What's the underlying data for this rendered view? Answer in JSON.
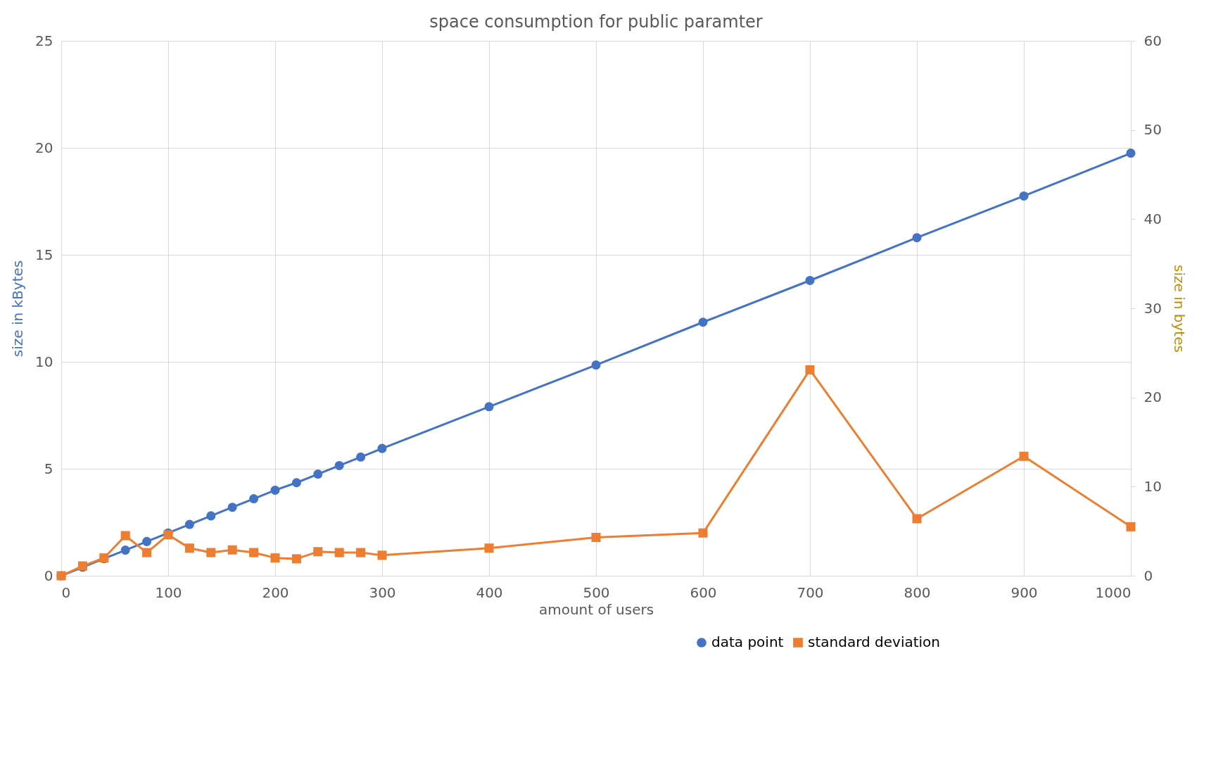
{
  "chart_data": {
    "type": "line",
    "title": "space consumption for public paramter",
    "xlabel": "amount of users",
    "ylabel": "size in kBytes",
    "y2label": "size in bytes",
    "x": [
      0,
      20,
      40,
      60,
      80,
      100,
      120,
      140,
      160,
      180,
      200,
      220,
      240,
      260,
      280,
      300,
      400,
      500,
      600,
      700,
      800,
      900,
      1000
    ],
    "series": [
      {
        "name": "data point",
        "color": "#4472c4",
        "marker": "circle",
        "values": [
          0,
          0.4,
          0.8,
          1.2,
          1.6,
          2.0,
          2.4,
          2.8,
          3.2,
          3.6,
          4.0,
          4.35,
          4.75,
          5.15,
          5.55,
          5.95,
          7.9,
          9.85,
          11.85,
          13.8,
          15.8,
          17.75,
          19.75
        ]
      },
      {
        "name": "standard deviation",
        "color": "#ed7d31",
        "marker": "square",
        "axis": "y2",
        "values": [
          0,
          1.1,
          2.0,
          4.5,
          2.6,
          4.6,
          3.1,
          2.6,
          2.9,
          2.6,
          2.0,
          1.9,
          2.7,
          2.6,
          2.6,
          2.3,
          3.1,
          4.3,
          4.8,
          23.1,
          6.4,
          13.4,
          5.5
        ]
      }
    ],
    "xlim": [
      0,
      1000
    ],
    "xticks": [
      0,
      100,
      200,
      300,
      400,
      500,
      600,
      700,
      800,
      900,
      1000
    ],
    "ylim": [
      0,
      25
    ],
    "yticks": [
      0,
      5,
      10,
      15,
      20,
      25
    ],
    "y2lim": [
      0,
      60
    ],
    "y2ticks": [
      0,
      10,
      20,
      30,
      40,
      50,
      60
    ],
    "grid": true,
    "legend": "bottom",
    "line_style": "solid"
  }
}
